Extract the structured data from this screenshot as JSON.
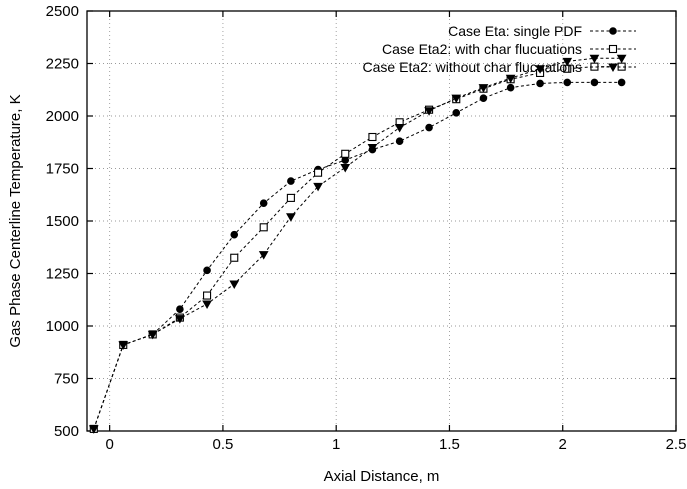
{
  "chart_data": {
    "type": "line",
    "xlabel": "Axial Distance, m",
    "ylabel": "Gas Phase Centerline Temperature, K",
    "xlim": [
      -0.1,
      2.5
    ],
    "ylim": [
      500,
      2500
    ],
    "xticks": [
      "0",
      "0.5",
      "1",
      "1.5",
      "2",
      "2.5"
    ],
    "yticks": [
      "500",
      "750",
      "1000",
      "1250",
      "1500",
      "1750",
      "2000",
      "2250",
      "2500"
    ],
    "grid": true,
    "legend_position": "top-right",
    "series": [
      {
        "name": "Case Eta: single PDF",
        "marker": "filled-circle",
        "x": [
          -0.07,
          0.06,
          0.19,
          0.31,
          0.43,
          0.55,
          0.68,
          0.8,
          0.92,
          1.04,
          1.16,
          1.28,
          1.41,
          1.53,
          1.65,
          1.77,
          1.9,
          2.02,
          2.14,
          2.26
        ],
        "y": [
          510,
          910,
          960,
          1080,
          1265,
          1435,
          1585,
          1690,
          1745,
          1790,
          1840,
          1880,
          1945,
          2015,
          2085,
          2135,
          2155,
          2160,
          2160,
          2160
        ]
      },
      {
        "name": "Case Eta2: with char flucuations",
        "marker": "open-square",
        "x": [
          -0.07,
          0.06,
          0.19,
          0.31,
          0.43,
          0.55,
          0.68,
          0.8,
          0.92,
          1.04,
          1.16,
          1.28,
          1.41,
          1.53,
          1.65,
          1.77,
          1.9,
          2.02,
          2.14,
          2.26
        ],
        "y": [
          510,
          910,
          960,
          1040,
          1145,
          1325,
          1470,
          1610,
          1730,
          1820,
          1900,
          1970,
          2030,
          2080,
          2130,
          2175,
          2205,
          2225,
          2235,
          2235
        ]
      },
      {
        "name": "Case Eta2: without char flucuations",
        "marker": "filled-triangle-down",
        "x": [
          -0.07,
          0.06,
          0.19,
          0.31,
          0.43,
          0.55,
          0.68,
          0.8,
          0.92,
          1.04,
          1.16,
          1.28,
          1.41,
          1.53,
          1.65,
          1.77,
          1.9,
          2.02,
          2.14,
          2.26
        ],
        "y": [
          510,
          910,
          960,
          1035,
          1105,
          1200,
          1340,
          1520,
          1665,
          1755,
          1850,
          1945,
          2025,
          2085,
          2135,
          2180,
          2225,
          2260,
          2275,
          2275
        ]
      }
    ]
  }
}
